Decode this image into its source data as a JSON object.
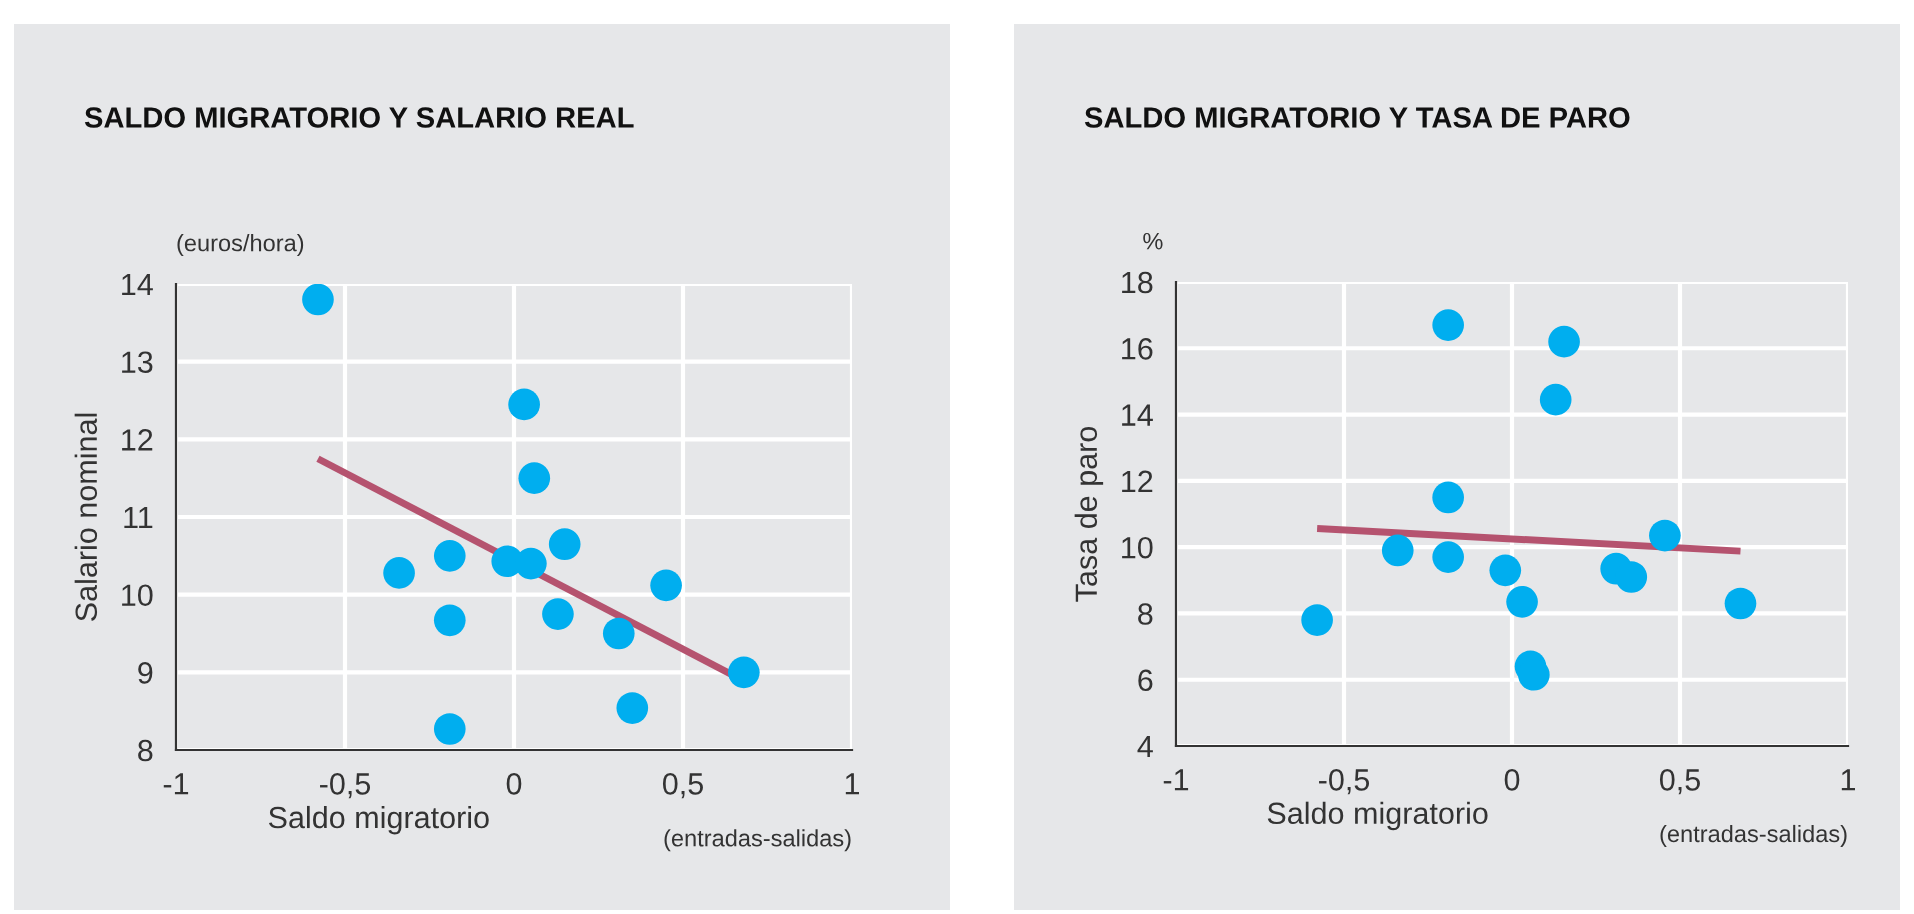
{
  "chart_data": [
    {
      "type": "scatter",
      "title": "SALDO MIGRATORIO Y SALARIO REAL",
      "xlabel": "Saldo migratorio",
      "ylabel": "Salario nominal",
      "annotations": [
        "(euros/hora)",
        "(entradas-salidas)"
      ],
      "xlim": [
        -1,
        1
      ],
      "xticks": [
        {
          "value": -1,
          "label": "-1"
        },
        {
          "value": -0.5,
          "label": "-0,5"
        },
        {
          "value": 0,
          "label": "0"
        },
        {
          "value": 0.5,
          "label": "0,5"
        },
        {
          "value": 1,
          "label": "1"
        }
      ],
      "ylim": [
        8,
        14
      ],
      "yticks": [
        8,
        9,
        10,
        11,
        12,
        13,
        14
      ],
      "grid": true,
      "legend": false,
      "series": [
        {
          "marker": "circle",
          "color": "#00aeef",
          "x": [
            -0.58,
            0.03,
            0.06,
            0.15,
            -0.19,
            -0.34,
            -0.02,
            0.05,
            0.45,
            -0.19,
            0.13,
            0.31,
            0.68,
            0.35,
            -0.19
          ],
          "values": [
            13.8,
            12.45,
            11.5,
            10.65,
            10.5,
            10.28,
            10.43,
            10.4,
            10.12,
            9.67,
            9.75,
            9.5,
            9.0,
            8.54,
            8.27
          ]
        },
        {
          "type": "line",
          "color": "#b5536f",
          "x": [
            -0.58,
            0.68
          ],
          "values": [
            11.75,
            8.89
          ]
        }
      ]
    },
    {
      "type": "scatter",
      "title": "SALDO MIGRATORIO Y TASA DE PARO",
      "xlabel": "Saldo migratorio",
      "ylabel": "Tasa de paro",
      "annotations": [
        "%",
        "(entradas-salidas)"
      ],
      "xlim": [
        -1,
        1
      ],
      "xticks": [
        {
          "value": -1,
          "label": "-1"
        },
        {
          "value": -0.5,
          "label": "-0,5"
        },
        {
          "value": 0,
          "label": "0"
        },
        {
          "value": 0.5,
          "label": "0,5"
        },
        {
          "value": 1,
          "label": "1"
        }
      ],
      "ylim": [
        4,
        18
      ],
      "yticks": [
        4,
        6,
        8,
        10,
        12,
        14,
        16,
        18
      ],
      "grid": true,
      "legend": false,
      "series": [
        {
          "marker": "circle",
          "color": "#00aeef",
          "x": [
            -0.19,
            0.155,
            0.13,
            -0.19,
            -0.34,
            -0.19,
            -0.02,
            0.03,
            -0.58,
            0.055,
            0.065,
            0.31,
            0.355,
            0.455,
            0.68
          ],
          "values": [
            16.7,
            16.2,
            14.45,
            11.5,
            9.9,
            9.7,
            9.3,
            8.35,
            7.8,
            6.4,
            6.15,
            9.35,
            9.1,
            10.35,
            8.3
          ]
        },
        {
          "type": "line",
          "color": "#b5536f",
          "x": [
            -0.58,
            0.68
          ],
          "values": [
            10.56,
            9.88
          ]
        }
      ]
    }
  ]
}
